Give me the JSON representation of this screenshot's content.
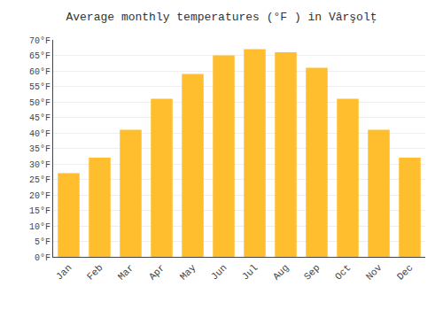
{
  "chart_data": {
    "type": "bar",
    "title": "Average monthly temperatures (°F ) in Vârşolţ",
    "categories": [
      "Jan",
      "Feb",
      "Mar",
      "Apr",
      "May",
      "Jun",
      "Jul",
      "Aug",
      "Sep",
      "Oct",
      "Nov",
      "Dec"
    ],
    "values": [
      27,
      32,
      41,
      51,
      59,
      65,
      67,
      66,
      61,
      51,
      41,
      32
    ],
    "color": "#FFBE2E",
    "ylim": [
      0,
      70
    ],
    "yticks": [
      {
        "value": 0,
        "label": "0°F"
      },
      {
        "value": 5,
        "label": "5°F"
      },
      {
        "value": 10,
        "label": "10°F"
      },
      {
        "value": 15,
        "label": "15°F"
      },
      {
        "value": 20,
        "label": "20°F"
      },
      {
        "value": 25,
        "label": "25°F"
      },
      {
        "value": 30,
        "label": "30°F"
      },
      {
        "value": 35,
        "label": "35°F"
      },
      {
        "value": 40,
        "label": "40°F"
      },
      {
        "value": 45,
        "label": "45°F"
      },
      {
        "value": 50,
        "label": "50°F"
      },
      {
        "value": 55,
        "label": "55°F"
      },
      {
        "value": 60,
        "label": "60°F"
      },
      {
        "value": 65,
        "label": "65°F"
      },
      {
        "value": 70,
        "label": "70°F"
      }
    ],
    "grid": true
  }
}
